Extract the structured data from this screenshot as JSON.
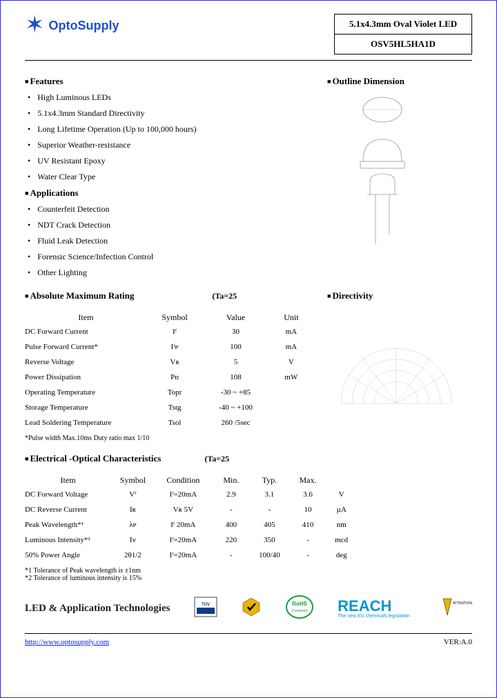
{
  "header": {
    "company": "OptoSupply",
    "product_title": "5.1x4.3mm Oval Violet LED",
    "part_no": "OSV5HL5HA1D"
  },
  "features": {
    "heading": "Features",
    "items": [
      "High Luminous LEDs",
      "5.1x4.3mm Standard Directivity",
      "Long Lifetime Operation (Up to 100,000 hours)",
      "Superior Weather-resistance",
      "UV Resistant Epoxy",
      "Water Clear Type"
    ]
  },
  "applications": {
    "heading": "Applications",
    "items": [
      "Counterfeit Detection",
      "NDT Crack Detection",
      "Fluid Leak Detection",
      "Forensic Science/Infection Control",
      "Other Lighting"
    ]
  },
  "outline": {
    "heading": "Outline Dimension"
  },
  "directivity": {
    "heading": "Directivity"
  },
  "abs_max": {
    "heading": "Absolute Maximum Rating",
    "cond": "(Ta=25",
    "cols": [
      "Item",
      "Symbol",
      "Value",
      "Unit"
    ],
    "rows": [
      {
        "item": "DC Forward Current",
        "sym": "Iᶠ",
        "val": "30",
        "unit": "mA"
      },
      {
        "item": "Pulse Forward Current*",
        "sym": "Iᶠᴘ",
        "val": "100",
        "unit": "mA"
      },
      {
        "item": "Reverse Voltage",
        "sym": "Vʀ",
        "val": "5",
        "unit": "V"
      },
      {
        "item": "Power Dissipation",
        "sym": "Pᴅ",
        "val": "108",
        "unit": "mW"
      },
      {
        "item": "Operating Temperature",
        "sym": "Topr",
        "val": "-30 ~ +85",
        "unit": ""
      },
      {
        "item": "Storage Temperature",
        "sym": "Tstg",
        "val": "-40 ~ +100",
        "unit": ""
      },
      {
        "item": "Lead Soldering Temperature",
        "sym": "Tsol",
        "val": "260    /5sec",
        "unit": ""
      }
    ],
    "note": "*Pulse width Max.10ms Duty ratio max 1/10"
  },
  "elec_opt": {
    "heading": "Electrical -Optical Characteristics",
    "cond": "(Ta=25",
    "cols": [
      "Item",
      "Symbol",
      "Condition",
      "Min.",
      "Typ.",
      "Max."
    ],
    "rows": [
      {
        "item": "DC Forward Voltage",
        "sym": "Vᶠ",
        "cond": "Iᶠ=20mA",
        "min": "2.9",
        "typ": "3.1",
        "max": "3.6",
        "unit": "V"
      },
      {
        "item": "DC Reverse Current",
        "sym": "Iʀ",
        "cond": "Vʀ  5V",
        "min": "-",
        "typ": "-",
        "max": "10",
        "unit": "µA"
      },
      {
        "item": "Peak Wavelength*¹",
        "sym": "λᴘ",
        "cond": "Iᶠ 20mA",
        "min": "400",
        "typ": "405",
        "max": "410",
        "unit": "nm"
      },
      {
        "item": "Luminous Intensity*²",
        "sym": "Iv",
        "cond": "Iᶠ=20mA",
        "min": "220",
        "typ": "350",
        "max": "-",
        "unit": "mcd"
      },
      {
        "item": "50% Power Angle",
        "sym": "2θ1/2",
        "cond": "Iᶠ=20mA",
        "min": "-",
        "typ": "100/40",
        "max": "-",
        "unit": "deg"
      }
    ],
    "note1": "*1 Tolerance of Peak wavelength is ±1nm",
    "note2": "*2 Tolerance of luminous intensity is   15%"
  },
  "badges": {
    "tech": "LED & Application Technologies",
    "reach_top": "REACH",
    "reach_sub": "The new EU chemicals legislation",
    "esd": "ATTENTION"
  },
  "footer": {
    "url": "http://www.optosupply.com",
    "ver": "VER:A.0"
  },
  "colors": {
    "brand": "#1e50c8",
    "link": "#0020ee",
    "reach": "#0296d1",
    "rohs": "#19a038"
  }
}
